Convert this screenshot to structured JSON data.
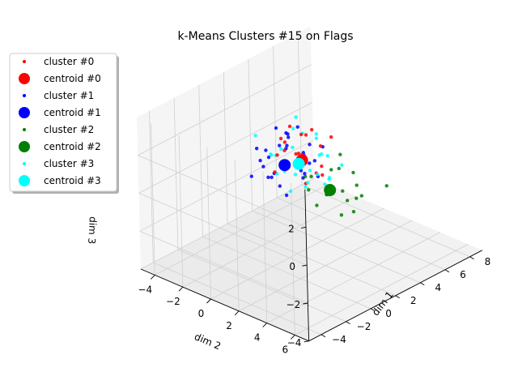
{
  "chart_data": {
    "type": "scatter3d",
    "title": "k-Means Clusters #15 on Flags",
    "xlabel": "dim 1",
    "ylabel": "dim 2",
    "zlabel": "dim 3",
    "xticks": [
      "−4",
      "−2",
      "0",
      "2",
      "4",
      "6",
      "8"
    ],
    "yticks": [
      "−4",
      "−2",
      "0",
      "2",
      "4",
      "6"
    ],
    "zticks": [
      "−4",
      "−2",
      "0",
      "2"
    ],
    "xlim": [
      -5,
      9
    ],
    "ylim": [
      -5,
      7
    ],
    "zlim": [
      -4,
      4
    ],
    "grid": true,
    "legend_position": "upper-left",
    "legend": [
      {
        "label": "cluster #0",
        "color": "#ff0000",
        "kind": "point"
      },
      {
        "label": "centroid #0",
        "color": "#ff0000",
        "kind": "centroid"
      },
      {
        "label": "cluster #1",
        "color": "#0000ff",
        "kind": "point"
      },
      {
        "label": "centroid #1",
        "color": "#0000ff",
        "kind": "centroid"
      },
      {
        "label": "cluster #2",
        "color": "#008000",
        "kind": "point"
      },
      {
        "label": "centroid #2",
        "color": "#008000",
        "kind": "centroid"
      },
      {
        "label": "cluster #3",
        "color": "#00ffff",
        "kind": "point"
      },
      {
        "label": "centroid #3",
        "color": "#00ffff",
        "kind": "centroid"
      }
    ],
    "series": [
      {
        "name": "cluster #0",
        "color": "#ff0000",
        "centroid": [
          4.2,
          -1.5,
          -0.3
        ],
        "points": [
          [
            3.6,
            -2.2,
            0.2
          ],
          [
            4.8,
            -0.6,
            -1.0
          ],
          [
            4.0,
            -2.8,
            0.5
          ],
          [
            5.2,
            -1.0,
            -0.8
          ],
          [
            3.2,
            -1.8,
            0.9
          ],
          [
            4.5,
            -2.0,
            -0.2
          ],
          [
            5.6,
            -1.4,
            0.0
          ],
          [
            3.8,
            -0.9,
            -1.2
          ],
          [
            4.4,
            -2.5,
            1.1
          ],
          [
            5.0,
            -2.2,
            -0.5
          ],
          [
            3.4,
            -1.2,
            0.4
          ],
          [
            4.9,
            -1.8,
            0.7
          ],
          [
            4.1,
            -0.4,
            -0.6
          ],
          [
            5.4,
            -2.6,
            0.3
          ],
          [
            3.9,
            -3.0,
            -0.4
          ],
          [
            4.6,
            -1.1,
            1.3
          ],
          [
            3.0,
            -2.4,
            -0.8
          ],
          [
            5.8,
            -0.8,
            0.6
          ]
        ]
      },
      {
        "name": "cluster #1",
        "color": "#0000ff",
        "centroid": [
          -0.5,
          1.5,
          2.0
        ],
        "points": [
          [
            -1.2,
            0.8,
            2.8
          ],
          [
            0.3,
            2.2,
            1.5
          ],
          [
            -0.8,
            1.9,
            3.1
          ],
          [
            0.6,
            0.7,
            2.4
          ],
          [
            -1.5,
            1.2,
            1.6
          ],
          [
            -0.2,
            2.6,
            2.9
          ],
          [
            0.9,
            1.4,
            1.2
          ],
          [
            -1.9,
            2.0,
            2.2
          ],
          [
            0.1,
            0.4,
            3.4
          ],
          [
            -0.6,
            2.9,
            1.8
          ],
          [
            1.2,
            1.8,
            2.6
          ],
          [
            -1.0,
            0.2,
            2.0
          ],
          [
            0.4,
            1.0,
            3.0
          ],
          [
            -1.4,
            2.4,
            1.0
          ],
          [
            0.8,
            2.5,
            2.1
          ],
          [
            -0.3,
            1.6,
            3.6
          ],
          [
            -2.2,
            1.5,
            2.5
          ],
          [
            1.5,
            1.1,
            1.7
          ],
          [
            -0.9,
            0.9,
            1.3
          ],
          [
            0.2,
            2.0,
            2.3
          ],
          [
            -1.7,
            0.6,
            3.0
          ],
          [
            1.0,
            0.3,
            2.8
          ],
          [
            -0.4,
            3.2,
            2.6
          ],
          [
            0.7,
            2.8,
            1.4
          ],
          [
            -1.1,
            1.7,
            3.3
          ],
          [
            -2.5,
            0.9,
            1.9
          ],
          [
            1.8,
            2.2,
            2.4
          ],
          [
            -0.1,
            0.0,
            1.8
          ],
          [
            -0.7,
            1.3,
            0.9
          ],
          [
            0.5,
            1.6,
            3.7
          ]
        ]
      },
      {
        "name": "cluster #2",
        "color": "#008000",
        "centroid": [
          0.3,
          4.0,
          1.2
        ],
        "points": [
          [
            -0.5,
            3.4,
            2.0
          ],
          [
            1.0,
            4.6,
            0.6
          ],
          [
            0.2,
            5.0,
            1.5
          ],
          [
            -1.0,
            4.2,
            0.9
          ],
          [
            1.5,
            3.6,
            1.8
          ],
          [
            0.6,
            5.4,
            0.4
          ],
          [
            -0.3,
            3.0,
            1.1
          ],
          [
            1.2,
            4.9,
            2.1
          ],
          [
            -0.8,
            4.8,
            1.6
          ],
          [
            0.9,
            3.2,
            0.5
          ],
          [
            2.0,
            4.4,
            1.0
          ],
          [
            -1.2,
            3.6,
            2.3
          ],
          [
            0.4,
            5.8,
            1.3
          ],
          [
            1.6,
            5.1,
            0.8
          ],
          [
            0.0,
            4.4,
            2.5
          ],
          [
            2.4,
            6.2,
            1.4
          ],
          [
            -0.6,
            5.6,
            0.7
          ],
          [
            1.3,
            3.9,
            2.7
          ]
        ]
      },
      {
        "name": "cluster #3",
        "color": "#00ffff",
        "centroid": [
          2.5,
          -0.2,
          0.5
        ],
        "points": [
          [
            2.0,
            -1.0,
            1.2
          ],
          [
            3.1,
            0.6,
            0.0
          ],
          [
            1.6,
            0.2,
            1.8
          ],
          [
            2.8,
            -1.5,
            -0.4
          ],
          [
            3.6,
            0.9,
            0.9
          ],
          [
            1.2,
            -0.6,
            0.3
          ],
          [
            2.4,
            1.4,
            1.5
          ],
          [
            3.3,
            -0.3,
            -0.8
          ],
          [
            1.9,
            0.8,
            -0.2
          ],
          [
            2.9,
            -0.9,
            2.0
          ],
          [
            4.0,
            0.1,
            0.6
          ],
          [
            1.5,
            -1.3,
            1.0
          ],
          [
            2.2,
            0.4,
            2.4
          ],
          [
            3.8,
            -1.1,
            0.2
          ],
          [
            1.0,
            0.9,
            0.8
          ],
          [
            2.6,
            1.9,
            0.4
          ],
          [
            3.4,
            0.3,
            1.7
          ],
          [
            1.8,
            -0.2,
            -0.7
          ],
          [
            4.4,
            -0.6,
            1.3
          ],
          [
            2.1,
            -1.8,
            0.6
          ],
          [
            0.8,
            -0.3,
            1.5
          ],
          [
            3.0,
            1.2,
            -0.3
          ],
          [
            2.7,
            -0.5,
            2.8
          ],
          [
            1.4,
            1.6,
            1.1
          ],
          [
            3.9,
            0.7,
            -0.5
          ],
          [
            4.6,
            1.0,
            0.1
          ],
          [
            1.1,
            -2.0,
            1.9
          ]
        ]
      }
    ]
  }
}
